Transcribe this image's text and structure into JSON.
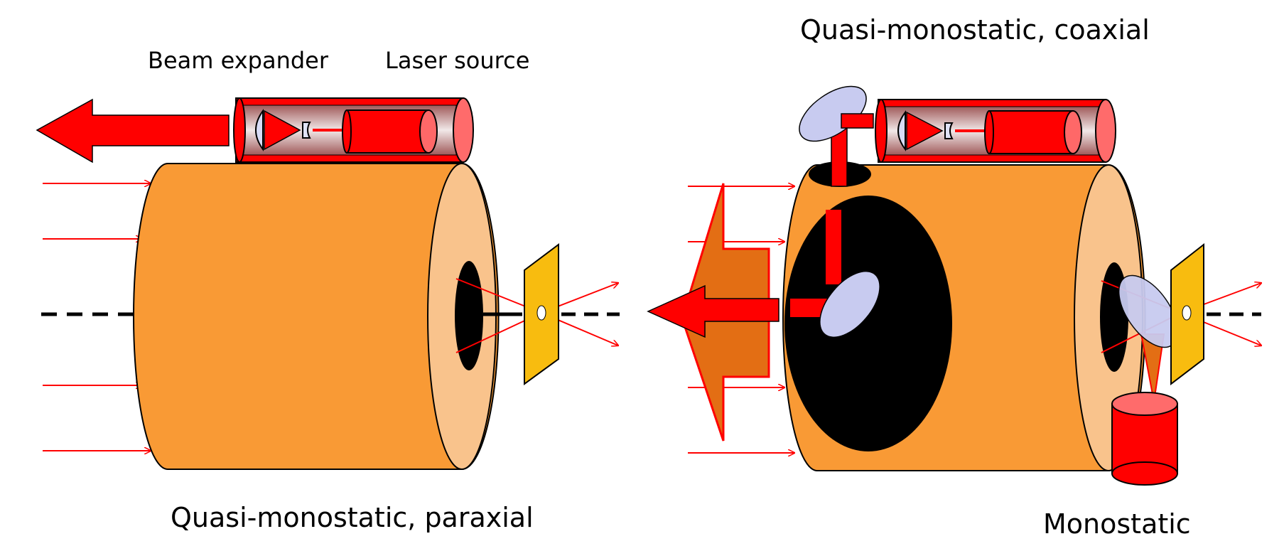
{
  "labels": {
    "beam_expander": "Beam expander",
    "laser_source": "Laser source",
    "quasi_coaxial": "Quasi-monostatic, coaxial",
    "quasi_paraxial": "Quasi-monostatic, paraxial",
    "monostatic": "Monostatic"
  },
  "colors": {
    "telescope_body": "#f99a35",
    "telescope_face": "#f9c38c",
    "laser": "#ff0000",
    "laser_glass": "#b97c7c",
    "pinhole_plate": "#f8bc0f",
    "mirror": "#c8cbf0",
    "transmit_beam": "#e36e14",
    "outline": "#000000"
  }
}
